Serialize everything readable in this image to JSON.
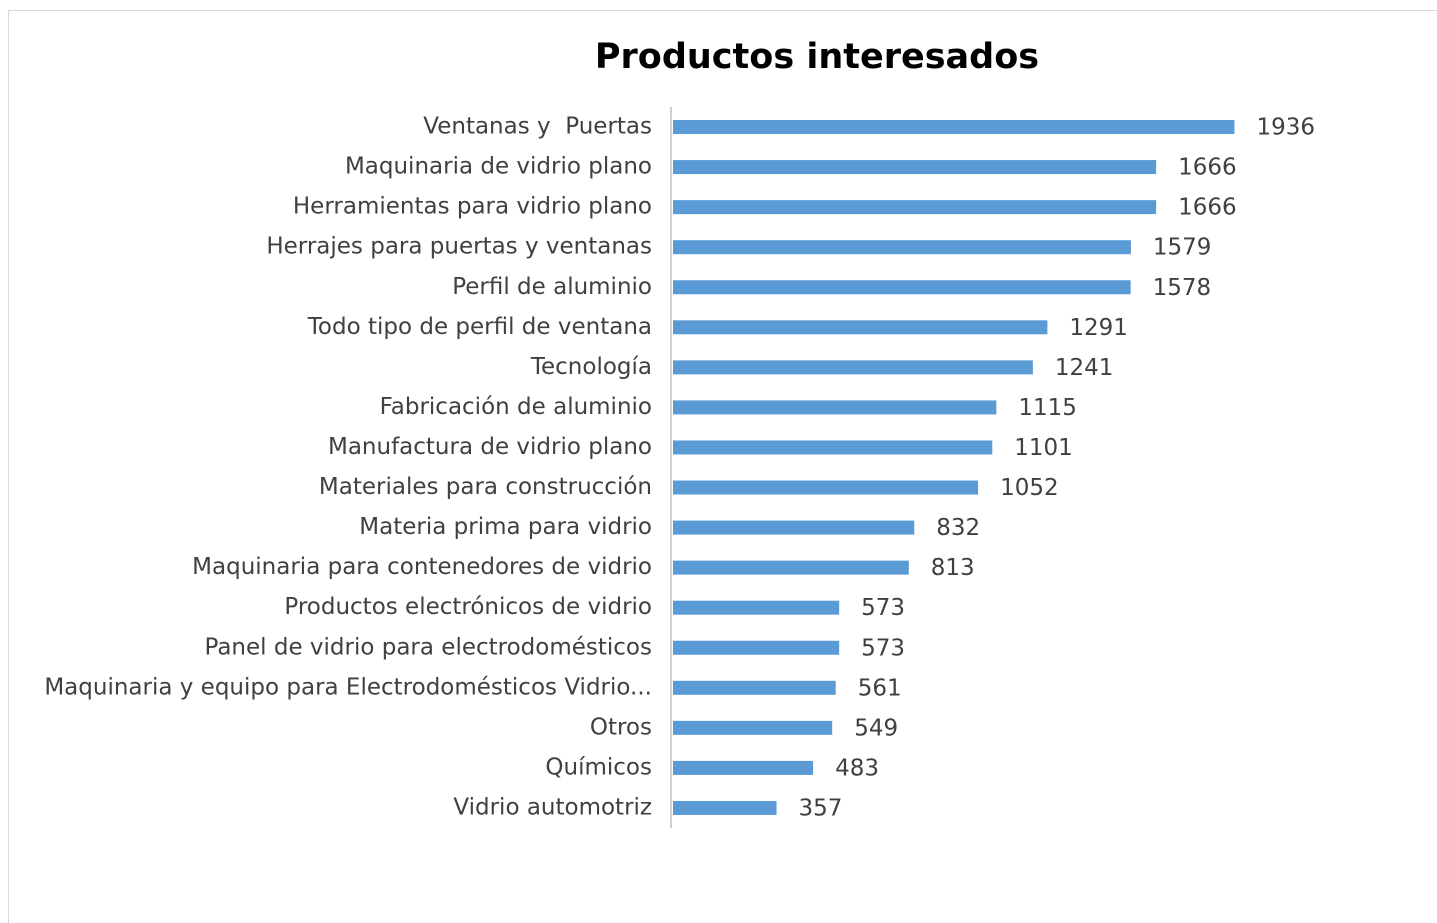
{
  "chart_data": {
    "type": "bar",
    "orientation": "horizontal",
    "title": "Productos interesados",
    "categories": [
      "Ventanas y  Puertas",
      "Maquinaria de vidrio plano",
      "Herramientas para vidrio plano",
      "Herrajes para puertas y ventanas",
      "Perfil de aluminio",
      "Todo tipo de perfil de ventana",
      "Tecnología",
      "Fabricación de aluminio",
      "Manufactura de vidrio plano",
      "Materiales para construcción",
      "Materia prima para vidrio",
      "Maquinaria para contenedores de vidrio",
      "Productos electrónicos de vidrio",
      "Panel de vidrio para electrodomésticos",
      "Maquinaria y equipo para Electrodomésticos Vidrio...",
      "Otros",
      "Químicos",
      "Vidrio automotriz"
    ],
    "values": [
      1936,
      1666,
      1666,
      1579,
      1578,
      1291,
      1241,
      1115,
      1101,
      1052,
      832,
      813,
      573,
      573,
      561,
      549,
      483,
      357
    ],
    "color": "#5b9bd5",
    "xlim": [
      0,
      2000
    ]
  }
}
